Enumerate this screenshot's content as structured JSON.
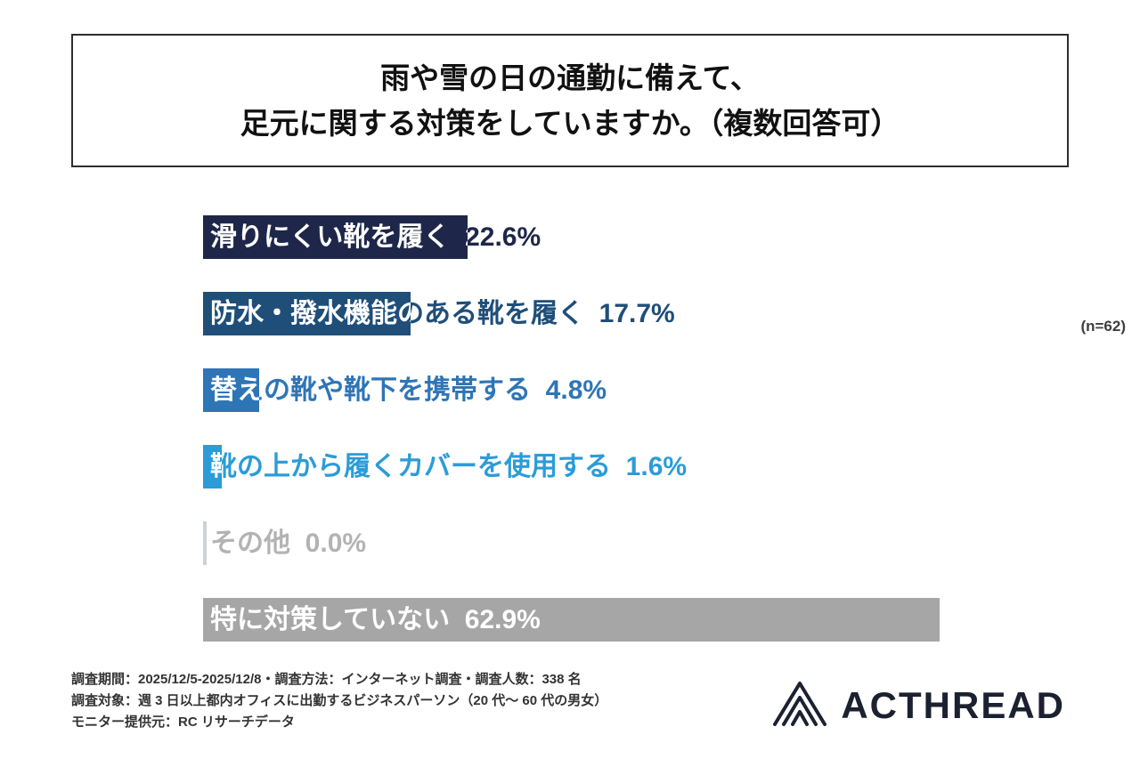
{
  "title": {
    "line1": "雨や雪の日の通勤に備えて、",
    "line2": "足元に関する対策をしていますか。（複数回答可）"
  },
  "chart_data": {
    "type": "bar",
    "orientation": "horizontal",
    "title": "雨や雪の日の通勤に備えて、足元に関する対策をしていますか。（複数回答可）",
    "categories": [
      "滑りにくい靴を履く",
      "防水・撥水機能のある靴を履く",
      "替えの靴や靴下を携帯する",
      "靴の上から履くカバーを使用する",
      "その他",
      "特に対策していない"
    ],
    "values": [
      22.6,
      17.7,
      4.8,
      1.6,
      0.0,
      62.9
    ],
    "value_labels": [
      "22.6%",
      "17.7%",
      "4.8%",
      "1.6%",
      "0.0%",
      "62.9%"
    ],
    "bar_colors": [
      "#1e2749",
      "#1f4e79",
      "#2e75b6",
      "#2b9cd8",
      "#ccd1d5",
      "#a6a6a6"
    ],
    "label_colors": [
      "#1e2749",
      "#1f4e79",
      "#2e75b6",
      "#2b9cd8",
      "#b3b3b3",
      "#a6a6a6"
    ],
    "xmax": 62.9,
    "xlabel": "",
    "ylabel": "",
    "grid": false,
    "legend": false,
    "sample_size_note": "(n=62)"
  },
  "footer": {
    "line1": "調査期間：2025/12/5-2025/12/8・調査方法：インターネット調査・調査人数：338 名",
    "line2": "調査対象：週 3 日以上都内オフィスに出勤するビジネスパーソン（20 代〜 60 代の男女）",
    "line3": "モニター提供元：RC リサーチデータ"
  },
  "logo": {
    "text": "ACTHREAD"
  }
}
